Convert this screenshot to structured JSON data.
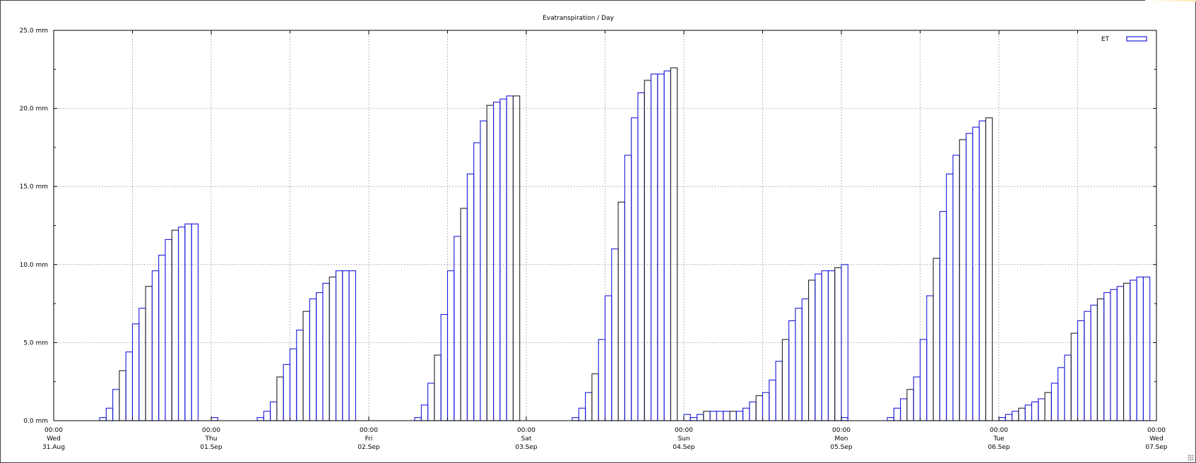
{
  "chart_data": {
    "type": "bar",
    "title": "Evatranspiration / Day",
    "legend": {
      "label": "ET",
      "position": "top-right"
    },
    "series_color": "#1a1adb",
    "alt_color": "#222222",
    "ylim": [
      0,
      25
    ],
    "y_ticks": [
      {
        "value": 0,
        "label": "0.0 mm"
      },
      {
        "value": 5,
        "label": "5.0 mm"
      },
      {
        "value": 10,
        "label": "10.0 mm"
      },
      {
        "value": 15,
        "label": "15.0 mm"
      },
      {
        "value": 20,
        "label": "20.0 mm"
      },
      {
        "value": 25,
        "label": "25.0 mm"
      }
    ],
    "x_range": [
      "2022-08-31 00:00",
      "2022-09-07 00:00"
    ],
    "x_ticks": [
      {
        "time": "00:00",
        "day": "Wed",
        "date": "31.Aug"
      },
      {
        "time": "00:00",
        "day": "Thu",
        "date": "01.Sep"
      },
      {
        "time": "00:00",
        "day": "Fri",
        "date": "02.Sep"
      },
      {
        "time": "00:00",
        "day": "Sat",
        "date": "03.Sep"
      },
      {
        "time": "00:00",
        "day": "Sun",
        "date": "04.Sep"
      },
      {
        "time": "00:00",
        "day": "Mon",
        "date": "05.Sep"
      },
      {
        "time": "00:00",
        "day": "Tue",
        "date": "06.Sep"
      },
      {
        "time": "00:00",
        "day": "Wed",
        "date": "07.Sep"
      }
    ],
    "grid": true,
    "bar_interval_hours": 1,
    "days": [
      {
        "date": "31.Aug",
        "start_hour": 7,
        "values": [
          0.2,
          0.8,
          2.0,
          3.2,
          4.4,
          6.2,
          7.2,
          8.6,
          9.6,
          10.6,
          11.6,
          12.2,
          12.4,
          12.6,
          12.6
        ]
      },
      {
        "date": "01.Sep",
        "start_hour": 7,
        "values": [
          0.2,
          0.6,
          1.2,
          2.8,
          3.6,
          4.6,
          5.8,
          7.0,
          7.8,
          8.2,
          8.8,
          9.2,
          9.6,
          9.6,
          9.6
        ]
      },
      {
        "date": "02.Sep",
        "start_hour": 7,
        "values": [
          0.2,
          1.0,
          2.4,
          4.2,
          6.8,
          9.6,
          11.8,
          13.6,
          15.8,
          17.8,
          19.2,
          20.2,
          20.4,
          20.6,
          20.8,
          20.8
        ]
      },
      {
        "date": "03.Sep",
        "start_hour": 7,
        "values": [
          0.2,
          0.8,
          1.8,
          3.0,
          5.2,
          8.0,
          11.0,
          14.0,
          17.0,
          19.4,
          21.0,
          21.8,
          22.2,
          22.2,
          22.4,
          22.6
        ]
      },
      {
        "date": "04.Sep",
        "start_hour": 0,
        "values": [
          0.4,
          0.2,
          0.4,
          0.6,
          0.6,
          0.6,
          0.6,
          0.6,
          0.6,
          0.8,
          1.2,
          1.6,
          1.8,
          2.6,
          3.8,
          5.2,
          6.4,
          7.2,
          7.8,
          9.0,
          9.4,
          9.6,
          9.6,
          9.8,
          10.0
        ]
      },
      {
        "date": "05.Sep",
        "start_hour": 7,
        "values": [
          0.2,
          0.8,
          1.4,
          2.0,
          2.8,
          5.2,
          8.0,
          10.4,
          13.4,
          15.8,
          17.0,
          18.0,
          18.4,
          18.8,
          19.2,
          19.4
        ]
      },
      {
        "date": "06.Sep",
        "start_hour": 0,
        "values": [
          0.2,
          0.4,
          0.6,
          0.8,
          1.0,
          1.2,
          1.4,
          1.8,
          2.4,
          3.4,
          4.2,
          5.6,
          6.4,
          7.0,
          7.4,
          7.8,
          8.2,
          8.4,
          8.6,
          8.8,
          9.0,
          9.2,
          9.2
        ]
      }
    ],
    "extra_bars": [
      {
        "date": "01.Sep",
        "hour": 0,
        "value": 0.2
      },
      {
        "date": "05.Sep",
        "hour": 0,
        "value": 0.2
      }
    ]
  }
}
